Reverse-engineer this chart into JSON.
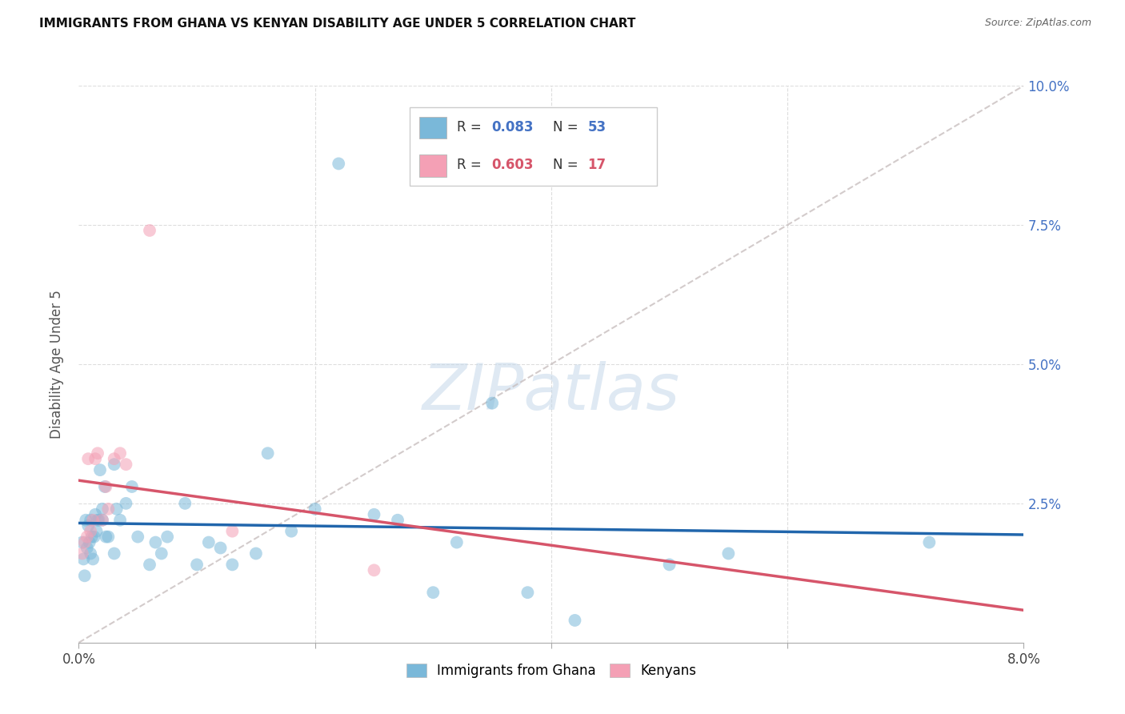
{
  "title": "IMMIGRANTS FROM GHANA VS KENYAN DISABILITY AGE UNDER 5 CORRELATION CHART",
  "source": "Source: ZipAtlas.com",
  "ylabel": "Disability Age Under 5",
  "xlim": [
    0.0,
    0.08
  ],
  "ylim": [
    0.0,
    0.1
  ],
  "legend_r1": "0.083",
  "legend_n1": "53",
  "legend_r2": "0.603",
  "legend_n2": "17",
  "color_ghana": "#7ab8d9",
  "color_kenya": "#f4a0b5",
  "color_line_ghana": "#2166ac",
  "color_line_kenya": "#d6556a",
  "color_dashed_line": "#c8bfbf",
  "watermark": "ZIPatlas",
  "ghana_x": [
    0.0003,
    0.0004,
    0.0005,
    0.0006,
    0.0007,
    0.0008,
    0.0009,
    0.001,
    0.001,
    0.0011,
    0.0012,
    0.0013,
    0.0014,
    0.0015,
    0.0016,
    0.0017,
    0.0018,
    0.002,
    0.002,
    0.0022,
    0.0023,
    0.0025,
    0.003,
    0.003,
    0.0032,
    0.0035,
    0.004,
    0.0045,
    0.005,
    0.006,
    0.0065,
    0.007,
    0.0075,
    0.009,
    0.01,
    0.011,
    0.012,
    0.013,
    0.015,
    0.016,
    0.018,
    0.02,
    0.022,
    0.025,
    0.027,
    0.03,
    0.032,
    0.035,
    0.038,
    0.042,
    0.05,
    0.055,
    0.072
  ],
  "ghana_y": [
    0.018,
    0.015,
    0.012,
    0.022,
    0.017,
    0.021,
    0.018,
    0.022,
    0.016,
    0.019,
    0.015,
    0.019,
    0.023,
    0.02,
    0.022,
    0.022,
    0.031,
    0.022,
    0.024,
    0.028,
    0.019,
    0.019,
    0.016,
    0.032,
    0.024,
    0.022,
    0.025,
    0.028,
    0.019,
    0.014,
    0.018,
    0.016,
    0.019,
    0.025,
    0.014,
    0.018,
    0.017,
    0.014,
    0.016,
    0.034,
    0.02,
    0.024,
    0.086,
    0.023,
    0.022,
    0.009,
    0.018,
    0.043,
    0.009,
    0.004,
    0.014,
    0.016,
    0.018
  ],
  "kenya_x": [
    0.0003,
    0.0005,
    0.0007,
    0.0008,
    0.001,
    0.0012,
    0.0014,
    0.0016,
    0.002,
    0.0023,
    0.0025,
    0.003,
    0.0035,
    0.004,
    0.006,
    0.013,
    0.025
  ],
  "kenya_y": [
    0.016,
    0.018,
    0.019,
    0.033,
    0.02,
    0.022,
    0.033,
    0.034,
    0.022,
    0.028,
    0.024,
    0.033,
    0.034,
    0.032,
    0.074,
    0.02,
    0.013
  ]
}
